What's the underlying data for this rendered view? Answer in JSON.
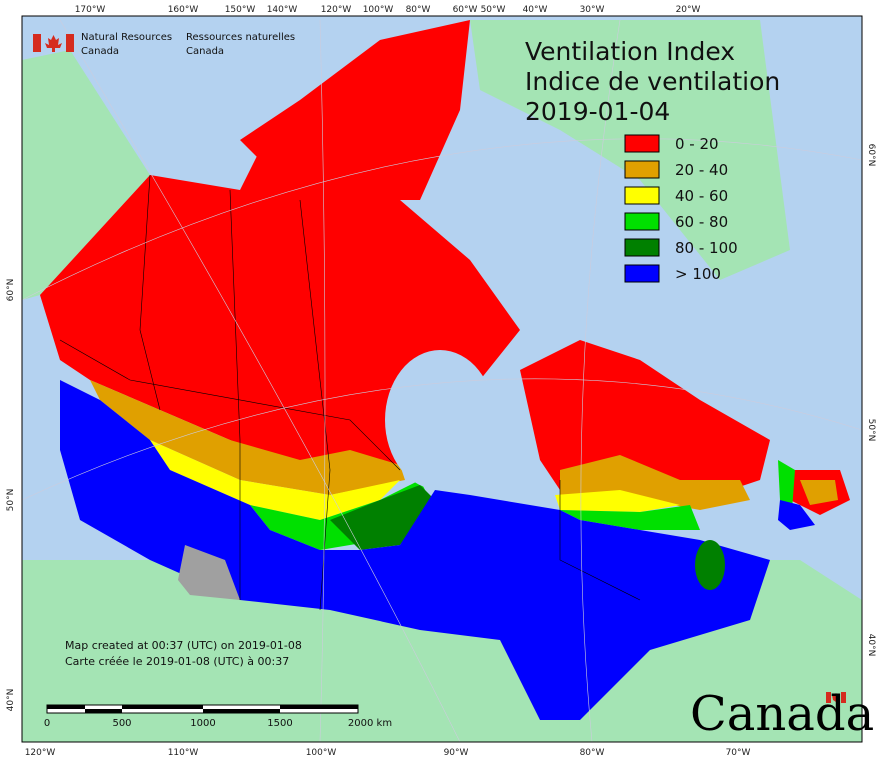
{
  "header": {
    "org_en": [
      "Natural Resources",
      "Canada"
    ],
    "org_fr": [
      "Ressources naturelles",
      "Canada"
    ]
  },
  "title": {
    "line1": "Ventilation Index",
    "line2": "Indice de ventilation",
    "date": "2019-01-04"
  },
  "legend": [
    {
      "label": "0 - 20",
      "color": "#ff0000"
    },
    {
      "label": "20 - 40",
      "color": "#e0a000"
    },
    {
      "label": "40 - 60",
      "color": "#ffff00"
    },
    {
      "label": "60 - 80",
      "color": "#00e000"
    },
    {
      "label": "80 - 100",
      "color": "#008000"
    },
    {
      "label": "> 100",
      "color": "#0000ff"
    }
  ],
  "graticule": {
    "top": [
      "170°W",
      "160°W",
      "150°W",
      "140°W",
      "120°W",
      "100°W",
      "80°W",
      "60°W",
      "50°W",
      "40°W",
      "30°W",
      "20°W"
    ],
    "bottom": [
      "120°W",
      "110°W",
      "100°W",
      "90°W",
      "80°W",
      "70°W"
    ],
    "left": [
      "60°N",
      "50°N",
      "40°N"
    ],
    "right": [
      "60°N",
      "50°N",
      "40°N"
    ]
  },
  "footer": {
    "created_en": "Map created at 00:37 (UTC) on 2019-01-08",
    "created_fr": "Carte créée le 2019-01-08 (UTC) à 00:37"
  },
  "scale_bar": {
    "labels": [
      "0",
      "500",
      "1000",
      "1500",
      "2000 km"
    ]
  },
  "wordmark": "Canada"
}
